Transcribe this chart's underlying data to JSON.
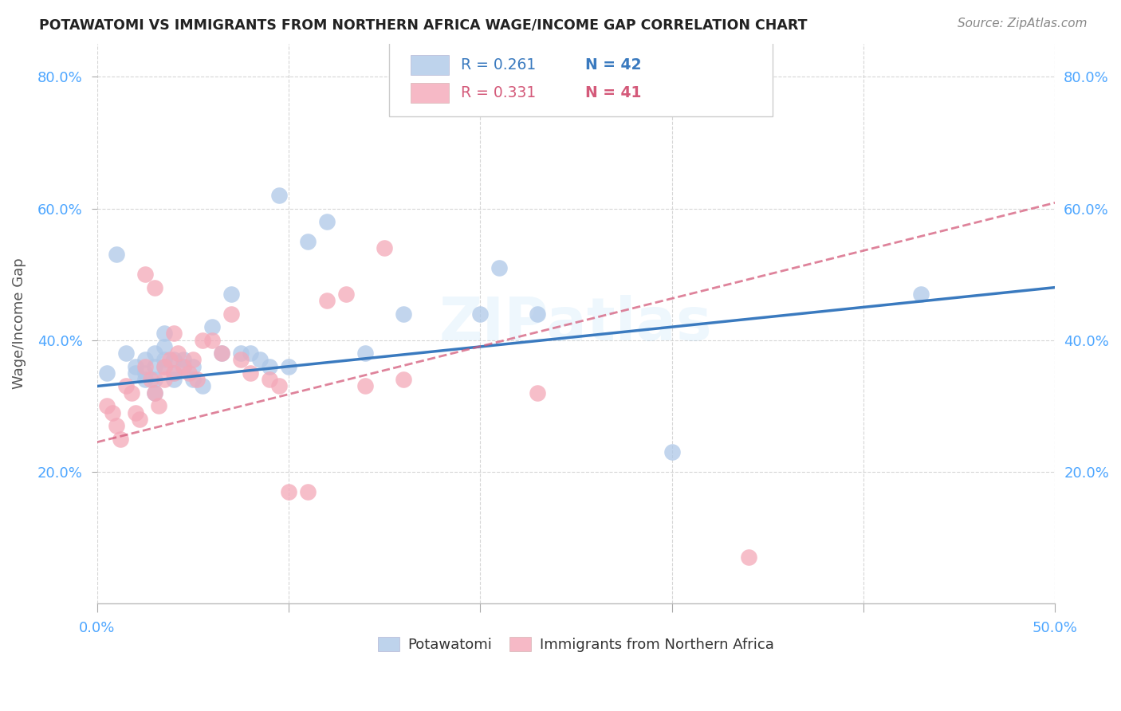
{
  "title": "POTAWATOMI VS IMMIGRANTS FROM NORTHERN AFRICA WAGE/INCOME GAP CORRELATION CHART",
  "source": "Source: ZipAtlas.com",
  "ylabel": "Wage/Income Gap",
  "xmin": 0.0,
  "xmax": 0.5,
  "ymin": 0.0,
  "ymax": 0.85,
  "legend_labels": [
    "Potawatomi",
    "Immigrants from Northern Africa"
  ],
  "R_blue": 0.261,
  "N_blue": 42,
  "R_pink": 0.331,
  "N_pink": 41,
  "blue_color": "#aec8e8",
  "pink_color": "#f4a8b8",
  "line_blue": "#3a7abf",
  "line_pink": "#d45a7a",
  "watermark": "ZIPatlas",
  "blue_x": [
    0.005,
    0.01,
    0.015,
    0.02,
    0.02,
    0.025,
    0.025,
    0.025,
    0.03,
    0.03,
    0.03,
    0.03,
    0.035,
    0.035,
    0.035,
    0.035,
    0.04,
    0.04,
    0.04,
    0.045,
    0.045,
    0.05,
    0.05,
    0.055,
    0.06,
    0.065,
    0.07,
    0.075,
    0.08,
    0.085,
    0.09,
    0.095,
    0.1,
    0.11,
    0.12,
    0.14,
    0.16,
    0.2,
    0.21,
    0.23,
    0.3,
    0.43
  ],
  "blue_y": [
    0.35,
    0.53,
    0.38,
    0.36,
    0.35,
    0.37,
    0.35,
    0.34,
    0.38,
    0.36,
    0.34,
    0.32,
    0.41,
    0.39,
    0.37,
    0.36,
    0.37,
    0.35,
    0.34,
    0.37,
    0.36,
    0.36,
    0.34,
    0.33,
    0.42,
    0.38,
    0.47,
    0.38,
    0.38,
    0.37,
    0.36,
    0.62,
    0.36,
    0.55,
    0.58,
    0.38,
    0.44,
    0.44,
    0.51,
    0.44,
    0.23,
    0.47
  ],
  "pink_x": [
    0.005,
    0.008,
    0.01,
    0.012,
    0.015,
    0.018,
    0.02,
    0.022,
    0.025,
    0.025,
    0.028,
    0.03,
    0.03,
    0.032,
    0.035,
    0.035,
    0.038,
    0.04,
    0.04,
    0.042,
    0.045,
    0.048,
    0.05,
    0.052,
    0.055,
    0.06,
    0.065,
    0.07,
    0.075,
    0.08,
    0.09,
    0.095,
    0.1,
    0.11,
    0.12,
    0.13,
    0.14,
    0.15,
    0.16,
    0.23,
    0.34
  ],
  "pink_y": [
    0.3,
    0.29,
    0.27,
    0.25,
    0.33,
    0.32,
    0.29,
    0.28,
    0.36,
    0.5,
    0.34,
    0.48,
    0.32,
    0.3,
    0.36,
    0.34,
    0.37,
    0.41,
    0.35,
    0.38,
    0.36,
    0.35,
    0.37,
    0.34,
    0.4,
    0.4,
    0.38,
    0.44,
    0.37,
    0.35,
    0.34,
    0.33,
    0.17,
    0.17,
    0.46,
    0.47,
    0.33,
    0.54,
    0.34,
    0.32,
    0.07
  ]
}
